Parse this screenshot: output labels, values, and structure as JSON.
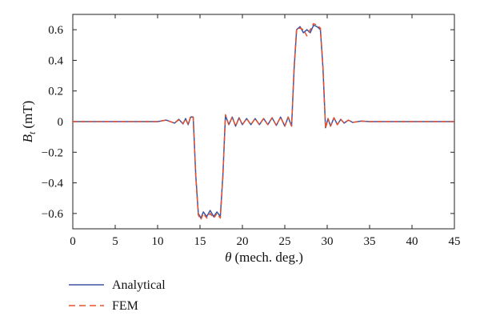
{
  "chart_data": {
    "type": "line",
    "title": "",
    "xlabel": "θ (mech. deg.)",
    "xlabel_symbol": "θ",
    "xlabel_text": "(mech. deg.)",
    "ylabel": "B_t (mT)",
    "ylabel_symbol": "B",
    "ylabel_subscript": "t",
    "ylabel_unit": "(mT)",
    "xlim": [
      0,
      45
    ],
    "ylim": [
      -0.7,
      0.7
    ],
    "xticks": [
      0,
      5,
      10,
      15,
      20,
      25,
      30,
      35,
      40,
      45
    ],
    "xtick_labels": [
      "0",
      "5",
      "10",
      "15",
      "20",
      "25",
      "30",
      "35",
      "40",
      "45"
    ],
    "yticks": [
      0.6,
      0.4,
      0.2,
      0,
      -0.2,
      -0.4,
      -0.6
    ],
    "ytick_labels": [
      "0.6",
      "0.4",
      "0.2",
      "0",
      "−0.2",
      "−0.4",
      "−0.6"
    ],
    "grid": false,
    "legend_position": "below-left",
    "series": [
      {
        "name": "Analytical",
        "color": "#3f54a0",
        "dash": "solid",
        "x": [
          0,
          10,
          11,
          12,
          12.5,
          13,
          13.3,
          13.6,
          13.9,
          14.2,
          14.5,
          14.8,
          15.1,
          15.4,
          15.8,
          16.2,
          16.6,
          17.0,
          17.4,
          17.7,
          18.0,
          18.4,
          18.8,
          19.2,
          19.6,
          20.0,
          20.5,
          21.0,
          21.5,
          22.0,
          22.5,
          23.0,
          23.5,
          24.0,
          24.5,
          25.0,
          25.4,
          25.8,
          26.1,
          26.4,
          26.8,
          27.2,
          27.6,
          28.0,
          28.4,
          28.8,
          29.2,
          29.5,
          29.8,
          30.1,
          30.4,
          30.8,
          31.2,
          31.6,
          32.0,
          32.5,
          33.0,
          34.0,
          35.0,
          45
        ],
        "y": [
          0,
          0,
          0.01,
          -0.01,
          0.015,
          -0.015,
          0.02,
          -0.02,
          0.03,
          0.03,
          -0.35,
          -0.6,
          -0.63,
          -0.59,
          -0.62,
          -0.58,
          -0.62,
          -0.59,
          -0.62,
          -0.35,
          0.04,
          -0.02,
          0.03,
          -0.03,
          0.025,
          -0.02,
          0.02,
          -0.02,
          0.02,
          -0.02,
          0.02,
          -0.02,
          0.025,
          -0.025,
          0.03,
          -0.03,
          0.03,
          -0.03,
          0.35,
          0.6,
          0.62,
          0.58,
          0.6,
          0.58,
          0.63,
          0.62,
          0.6,
          0.35,
          -0.04,
          0.02,
          -0.03,
          0.025,
          -0.02,
          0.015,
          -0.01,
          0.01,
          -0.005,
          0.003,
          0,
          0
        ]
      },
      {
        "name": "FEM",
        "color": "#e8502a",
        "dash": "dashed",
        "x": [
          0,
          10,
          11,
          12,
          12.5,
          13,
          13.3,
          13.6,
          13.9,
          14.2,
          14.5,
          14.8,
          15.1,
          15.4,
          15.8,
          16.2,
          16.6,
          17.0,
          17.4,
          17.7,
          18.0,
          18.4,
          18.8,
          19.2,
          19.6,
          20.0,
          20.5,
          21.0,
          21.5,
          22.0,
          22.5,
          23.0,
          23.5,
          24.0,
          24.5,
          25.0,
          25.4,
          25.8,
          26.1,
          26.4,
          26.8,
          27.2,
          27.6,
          28.0,
          28.4,
          28.8,
          29.2,
          29.5,
          29.8,
          30.1,
          30.4,
          30.8,
          31.2,
          31.6,
          32.0,
          32.5,
          33.0,
          34.0,
          35.0,
          45
        ],
        "y": [
          0,
          0,
          0.01,
          -0.01,
          0.012,
          -0.012,
          0.018,
          -0.02,
          0.035,
          0.03,
          -0.36,
          -0.61,
          -0.64,
          -0.6,
          -0.63,
          -0.6,
          -0.63,
          -0.6,
          -0.63,
          -0.36,
          0.045,
          -0.02,
          0.03,
          -0.03,
          0.025,
          -0.02,
          0.02,
          -0.02,
          0.02,
          -0.02,
          0.02,
          -0.02,
          0.025,
          -0.025,
          0.03,
          -0.03,
          0.03,
          -0.03,
          0.36,
          0.61,
          0.61,
          0.6,
          0.56,
          0.6,
          0.64,
          0.63,
          0.61,
          0.36,
          -0.045,
          0.02,
          -0.03,
          0.025,
          -0.02,
          0.015,
          -0.01,
          0.01,
          -0.005,
          0.003,
          0,
          0
        ]
      }
    ]
  }
}
